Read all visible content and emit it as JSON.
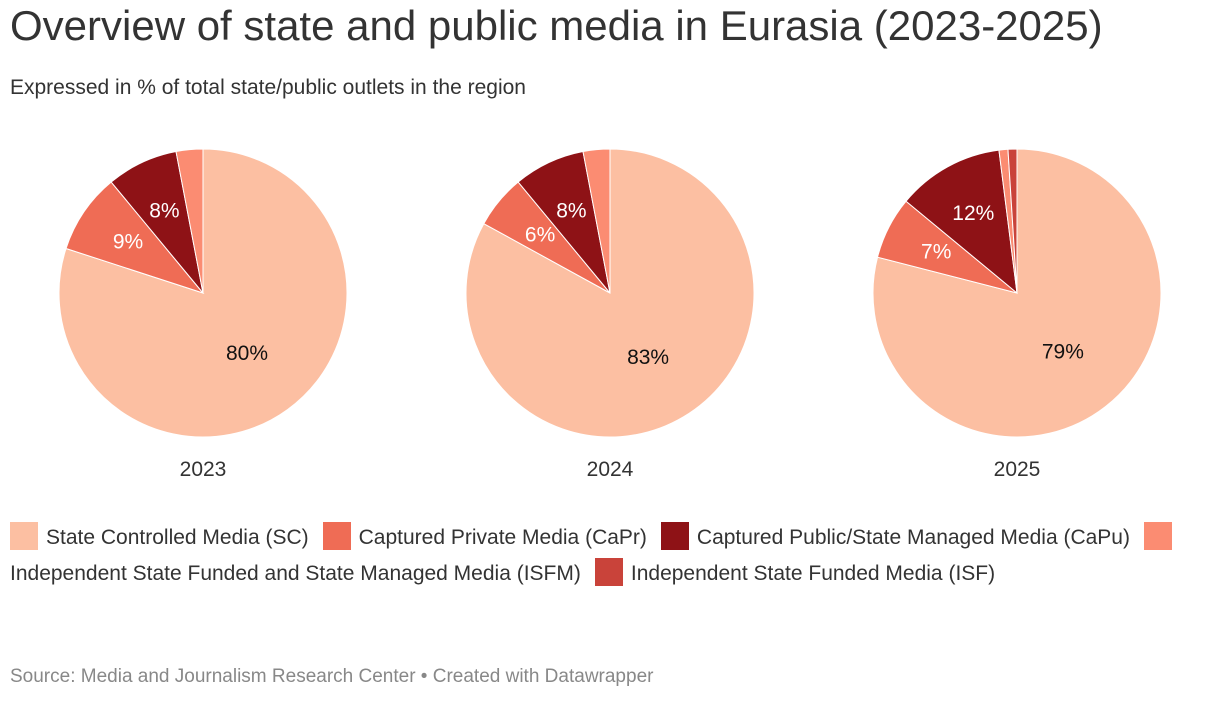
{
  "title": "Overview of state and public media in Eurasia (2023-2025)",
  "subtitle": "Expressed in % of total state/public outlets in the region",
  "source": "Source: Media and Journalism Research Center • Created with Datawrapper",
  "legend": [
    {
      "label": "State Controlled Media (SC)",
      "color": "#fcbfa2"
    },
    {
      "label": "Captured Private Media (CaPr)",
      "color": "#ef6c55"
    },
    {
      "label": "Captured Public/State Managed Media (CaPu)",
      "color": "#8e1216"
    },
    {
      "label": "Independent State Funded and State Managed Media (ISFM)",
      "color": "#fb8c72"
    },
    {
      "label": "Independent State Funded Media (ISF)",
      "color": "#c9433a"
    }
  ],
  "chart_data": [
    {
      "type": "pie",
      "year": "2023",
      "labels": [
        "State Controlled Media (SC)",
        "Captured Private Media (CaPr)",
        "Captured Public/State Managed Media (CaPu)",
        "Independent State Funded and State Managed Media (ISFM)",
        "Independent State Funded Media (ISF)"
      ],
      "values": [
        80,
        9,
        8,
        3,
        0
      ],
      "data_labels": [
        "80%",
        "9%",
        "8%",
        "",
        ""
      ]
    },
    {
      "type": "pie",
      "year": "2024",
      "labels": [
        "State Controlled Media (SC)",
        "Captured Private Media (CaPr)",
        "Captured Public/State Managed Media (CaPu)",
        "Independent State Funded and State Managed Media (ISFM)",
        "Independent State Funded Media (ISF)"
      ],
      "values": [
        83,
        6,
        8,
        3,
        0
      ],
      "data_labels": [
        "83%",
        "6%",
        "8%",
        "",
        ""
      ]
    },
    {
      "type": "pie",
      "year": "2025",
      "labels": [
        "State Controlled Media (SC)",
        "Captured Private Media (CaPr)",
        "Captured Public/State Managed Media (CaPu)",
        "Independent State Funded and State Managed Media (ISFM)",
        "Independent State Funded Media (ISF)"
      ],
      "values": [
        79,
        7,
        12,
        1,
        1
      ],
      "data_labels": [
        "79%",
        "7%",
        "12%",
        "",
        ""
      ]
    }
  ]
}
